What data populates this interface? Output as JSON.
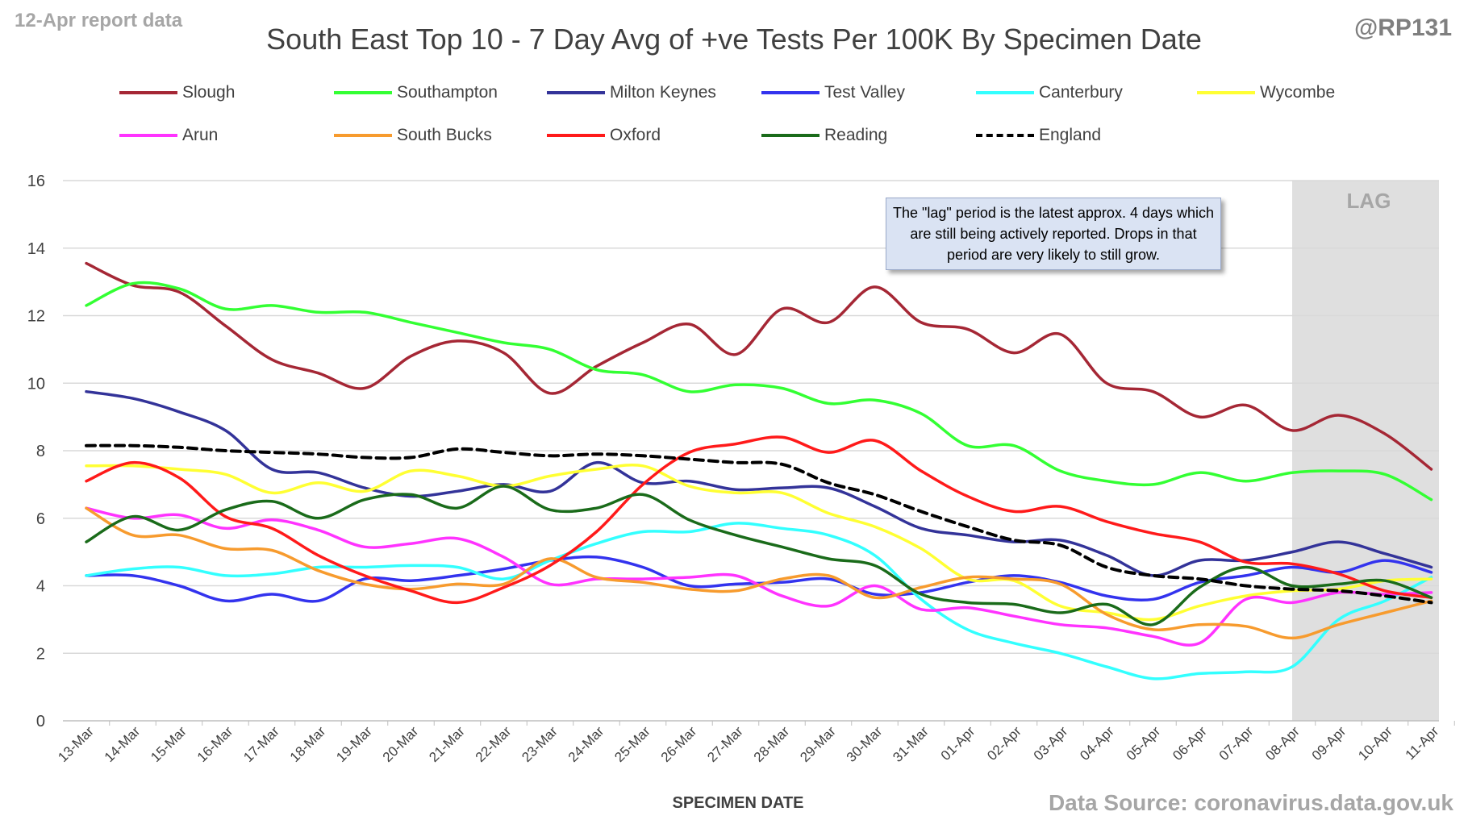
{
  "header": {
    "corner_left": "12-Apr report data",
    "corner_right": "@RP131",
    "source": "Data Source: coronavirus.data.gov.uk"
  },
  "note": {
    "text": "The \"lag\" period is the latest approx. 4 days which are still being actively reported. Drops in that period are very likely to still grow."
  },
  "chart_data": {
    "type": "line",
    "title": "South East Top 10 - 7 Day Avg of +ve Tests Per 100K By Specimen Date",
    "xlabel": "SPECIMEN DATE",
    "ylabel": "",
    "ylim": [
      0,
      16
    ],
    "yticks": [
      0,
      2,
      4,
      6,
      8,
      10,
      12,
      14,
      16
    ],
    "grid": "horizontal",
    "legend_position": "top",
    "lag_label": "LAG",
    "lag_range": [
      "08-Apr",
      "11-Apr"
    ],
    "categories": [
      "13-Mar",
      "14-Mar",
      "15-Mar",
      "16-Mar",
      "17-Mar",
      "18-Mar",
      "19-Mar",
      "20-Mar",
      "21-Mar",
      "22-Mar",
      "23-Mar",
      "24-Mar",
      "25-Mar",
      "26-Mar",
      "27-Mar",
      "28-Mar",
      "29-Mar",
      "30-Mar",
      "31-Mar",
      "01-Apr",
      "02-Apr",
      "03-Apr",
      "04-Apr",
      "05-Apr",
      "06-Apr",
      "07-Apr",
      "08-Apr",
      "09-Apr",
      "10-Apr",
      "11-Apr"
    ],
    "series": [
      {
        "name": "Slough",
        "color": "#a52735",
        "dash": false,
        "values": [
          13.55,
          12.9,
          12.7,
          11.7,
          10.7,
          10.3,
          9.85,
          10.8,
          11.25,
          10.9,
          9.7,
          10.5,
          11.2,
          11.75,
          10.85,
          12.2,
          11.8,
          12.85,
          11.8,
          11.6,
          10.9,
          11.45,
          10.0,
          9.75,
          9.0,
          9.35,
          8.6,
          9.05,
          8.5,
          7.45
        ]
      },
      {
        "name": "Southampton",
        "color": "#33ff33",
        "dash": false,
        "values": [
          12.3,
          12.95,
          12.8,
          12.2,
          12.3,
          12.1,
          12.1,
          11.8,
          11.5,
          11.2,
          11.0,
          10.4,
          10.25,
          9.75,
          9.95,
          9.85,
          9.4,
          9.5,
          9.1,
          8.15,
          8.15,
          7.4,
          7.1,
          7.0,
          7.35,
          7.1,
          7.35,
          7.4,
          7.3,
          6.55
        ]
      },
      {
        "name": "Milton Keynes",
        "color": "#333399",
        "dash": false,
        "values": [
          9.75,
          9.55,
          9.15,
          8.6,
          7.45,
          7.35,
          6.9,
          6.65,
          6.8,
          7.0,
          6.8,
          7.65,
          7.05,
          7.1,
          6.85,
          6.9,
          6.9,
          6.35,
          5.7,
          5.5,
          5.3,
          5.35,
          4.9,
          4.3,
          4.75,
          4.75,
          5.0,
          5.3,
          4.95,
          4.55
        ]
      },
      {
        "name": "Test Valley",
        "color": "#3333ee",
        "dash": false,
        "values": [
          4.3,
          4.3,
          4.0,
          3.55,
          3.75,
          3.55,
          4.2,
          4.15,
          4.3,
          4.5,
          4.75,
          4.85,
          4.55,
          4.0,
          4.05,
          4.1,
          4.2,
          3.75,
          3.8,
          4.1,
          4.3,
          4.1,
          3.7,
          3.6,
          4.1,
          4.3,
          4.55,
          4.4,
          4.75,
          4.4
        ]
      },
      {
        "name": "Canterbury",
        "color": "#33ffff",
        "dash": false,
        "values": [
          4.3,
          4.5,
          4.55,
          4.3,
          4.35,
          4.55,
          4.55,
          4.6,
          4.55,
          4.2,
          4.75,
          5.25,
          5.6,
          5.6,
          5.85,
          5.7,
          5.5,
          4.9,
          3.6,
          2.7,
          2.3,
          2.0,
          1.6,
          1.25,
          1.4,
          1.45,
          1.6,
          3.0,
          3.55,
          4.25
        ]
      },
      {
        "name": "Wycombe",
        "color": "#ffff33",
        "dash": false,
        "values": [
          7.55,
          7.55,
          7.45,
          7.3,
          6.75,
          7.05,
          6.8,
          7.4,
          7.25,
          6.95,
          7.25,
          7.45,
          7.55,
          6.95,
          6.75,
          6.75,
          6.15,
          5.75,
          5.1,
          4.2,
          4.15,
          3.4,
          3.2,
          3.0,
          3.4,
          3.7,
          3.85,
          3.9,
          4.15,
          4.2
        ]
      },
      {
        "name": "Arun",
        "color": "#ff33ff",
        "dash": false,
        "values": [
          6.3,
          6.0,
          6.1,
          5.7,
          5.95,
          5.65,
          5.15,
          5.25,
          5.4,
          4.85,
          4.05,
          4.2,
          4.2,
          4.25,
          4.3,
          3.7,
          3.4,
          4.0,
          3.3,
          3.35,
          3.1,
          2.85,
          2.75,
          2.5,
          2.3,
          3.6,
          3.5,
          3.8,
          3.75,
          3.8
        ]
      },
      {
        "name": "South Bucks",
        "color": "#f79b2e",
        "dash": false,
        "values": [
          6.3,
          5.5,
          5.5,
          5.1,
          5.05,
          4.45,
          4.05,
          3.9,
          4.05,
          4.05,
          4.8,
          4.25,
          4.1,
          3.9,
          3.85,
          4.2,
          4.3,
          3.65,
          3.95,
          4.25,
          4.2,
          4.05,
          3.15,
          2.7,
          2.85,
          2.8,
          2.45,
          2.85,
          3.2,
          3.55
        ]
      },
      {
        "name": "Oxford",
        "color": "#ff1a1a",
        "dash": false,
        "values": [
          7.1,
          7.65,
          7.2,
          6.05,
          5.7,
          4.9,
          4.3,
          3.85,
          3.5,
          3.95,
          4.6,
          5.6,
          7.0,
          7.95,
          8.2,
          8.4,
          7.95,
          8.3,
          7.4,
          6.65,
          6.2,
          6.35,
          5.9,
          5.55,
          5.3,
          4.7,
          4.65,
          4.35,
          3.85,
          3.65
        ]
      },
      {
        "name": "Reading",
        "color": "#1a6b1a",
        "dash": false,
        "values": [
          5.3,
          6.05,
          5.65,
          6.25,
          6.5,
          6.0,
          6.55,
          6.7,
          6.3,
          6.95,
          6.25,
          6.3,
          6.7,
          5.95,
          5.5,
          5.15,
          4.8,
          4.6,
          3.75,
          3.5,
          3.45,
          3.2,
          3.45,
          2.85,
          3.95,
          4.55,
          4.0,
          4.05,
          4.15,
          3.65
        ]
      },
      {
        "name": "England",
        "color": "#000000",
        "dash": true,
        "values": [
          8.15,
          8.15,
          8.1,
          8.0,
          7.95,
          7.9,
          7.8,
          7.8,
          8.05,
          7.95,
          7.85,
          7.9,
          7.85,
          7.75,
          7.65,
          7.6,
          7.05,
          6.7,
          6.2,
          5.75,
          5.35,
          5.2,
          4.55,
          4.3,
          4.2,
          4.0,
          3.9,
          3.85,
          3.7,
          3.5
        ]
      }
    ]
  }
}
